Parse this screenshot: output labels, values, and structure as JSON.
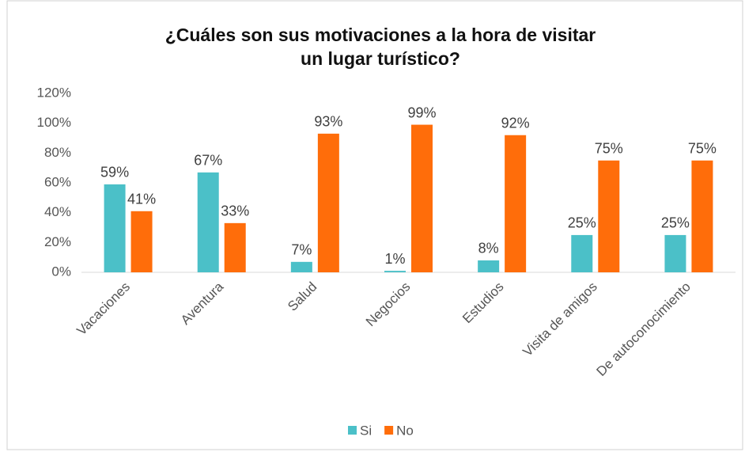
{
  "chart_data": {
    "type": "bar",
    "title": [
      "¿Cuáles son sus motivaciones a la hora de visitar",
      "un lugar turístico?"
    ],
    "categories": [
      "Vacaciones",
      "Aventura",
      "Salud",
      "Negocios",
      "Estudios",
      "Visita de amigos",
      "De autoconocimiento"
    ],
    "series": [
      {
        "name": "Si",
        "color": "#4bc0c8",
        "values": [
          59,
          67,
          7,
          1,
          8,
          25,
          25
        ],
        "value_labels": [
          "59%",
          "67%",
          "7%",
          "1%",
          "8%",
          "25%",
          "25%"
        ]
      },
      {
        "name": "No",
        "color": "#ff6d0a",
        "values": [
          41,
          33,
          93,
          99,
          92,
          75,
          75
        ],
        "value_labels": [
          "41%",
          "33%",
          "93%",
          "99%",
          "92%",
          "75%",
          "75%"
        ]
      }
    ],
    "ylim": [
      0,
      120
    ],
    "yticks": [
      {
        "value": 0,
        "label": "0%"
      },
      {
        "value": 20,
        "label": "20%"
      },
      {
        "value": 40,
        "label": "40%"
      },
      {
        "value": 60,
        "label": "60%"
      },
      {
        "value": 80,
        "label": "80%"
      },
      {
        "value": 100,
        "label": "100%"
      },
      {
        "value": 120,
        "label": "120%"
      }
    ],
    "grid": false,
    "legend": "bottom"
  }
}
